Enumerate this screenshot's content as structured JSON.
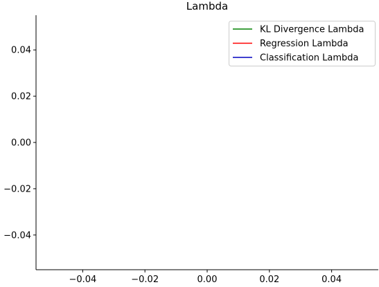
{
  "chart_data": {
    "type": "line",
    "title": "Lambda",
    "xlabel": "",
    "ylabel": "",
    "xlim": [
      -0.055,
      0.055
    ],
    "ylim": [
      -0.055,
      0.055
    ],
    "x_ticks": [
      -0.04,
      -0.02,
      0.0,
      0.02,
      0.04
    ],
    "y_ticks": [
      -0.04,
      -0.02,
      0.0,
      0.02,
      0.04
    ],
    "x_tick_labels": [
      "−0.04",
      "−0.02",
      "0.00",
      "0.02",
      "0.04"
    ],
    "y_tick_labels": [
      "−0.04",
      "−0.02",
      "0.00",
      "0.02",
      "0.04"
    ],
    "grid": false,
    "legend_position": "upper right",
    "series": [
      {
        "name": "KL Divergence Lambda",
        "color": "#008000",
        "x": [],
        "y": []
      },
      {
        "name": "Regression Lambda",
        "color": "#ff0000",
        "x": [],
        "y": []
      },
      {
        "name": "Classification Lambda",
        "color": "#0000bf",
        "x": [],
        "y": []
      }
    ]
  }
}
